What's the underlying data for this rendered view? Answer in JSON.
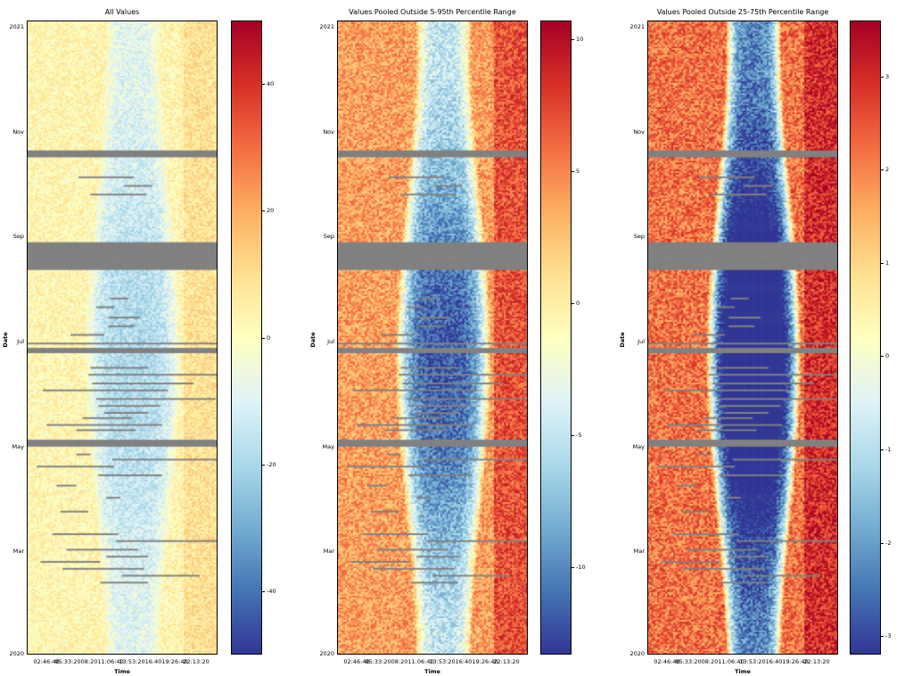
{
  "colormap": {
    "name": "RdYlBu_r",
    "stops": [
      "#313695",
      "#4575b4",
      "#74add1",
      "#abd9e9",
      "#e0f3f8",
      "#ffffbf",
      "#fee090",
      "#fdae61",
      "#f46d43",
      "#d73027",
      "#a50026"
    ],
    "missing_color": "#808080"
  },
  "chart_data": [
    {
      "type": "heatmap",
      "title": "All Values",
      "xlabel": "Time",
      "ylabel": "Date",
      "xticks": [
        "02:46:40",
        "05:33:20",
        "08:20",
        "11:06:40",
        "13:53:20",
        "16:40",
        "19:26:40",
        "22:13:20"
      ],
      "yticks": [
        "2021",
        "Nov",
        "Sep",
        "Jul",
        "May",
        "Mar",
        "2020"
      ],
      "colorbar": {
        "range": [
          -50,
          50
        ],
        "ticks": [
          40,
          20,
          0,
          -20,
          -40
        ]
      },
      "pattern": {
        "base": 3,
        "day_dip_summer": -22,
        "day_dip_winter": -12,
        "evening_bump": 6,
        "noise": 14
      },
      "missing": "grey bands"
    },
    {
      "type": "heatmap",
      "title": "Values Pooled Outside 5-95th Percentile Range",
      "xlabel": "Time",
      "ylabel": "Date",
      "xticks": [
        "02:46:40",
        "05:33:20",
        "08:20",
        "11:06:40",
        "13:53:20",
        "16:40",
        "19:26:40",
        "22:13:20"
      ],
      "yticks": [
        "2021",
        "Nov",
        "Sep",
        "Jul",
        "May",
        "Mar",
        "2020"
      ],
      "colorbar": {
        "range": [
          -13.3,
          10.7
        ],
        "ticks": [
          10,
          5,
          0,
          -5,
          -10
        ]
      },
      "pattern": {
        "base": 4,
        "day_dip_summer": -16,
        "day_dip_winter": -9,
        "evening_bump": 3,
        "noise": 5
      },
      "missing": "grey bands"
    },
    {
      "type": "heatmap",
      "title": "Values Pooled Outside 25-75th Percentile Range",
      "xlabel": "Time",
      "ylabel": "Date",
      "xticks": [
        "02:46:40",
        "05:33:20",
        "08:20",
        "11:06:40",
        "13:53:20",
        "16:40",
        "19:26:40",
        "22:13:20"
      ],
      "yticks": [
        "2021",
        "Nov",
        "Sep",
        "Jul",
        "May",
        "Mar",
        "2020"
      ],
      "colorbar": {
        "range": [
          -3.2,
          3.6
        ],
        "ticks": [
          3,
          2,
          1,
          0,
          -1,
          -2,
          -3
        ]
      },
      "pattern": {
        "base": 2.2,
        "day_dip_summer": -7,
        "day_dip_winter": -4.5,
        "evening_bump": 0.8,
        "noise": 1.6
      },
      "missing": "grey bands"
    }
  ]
}
